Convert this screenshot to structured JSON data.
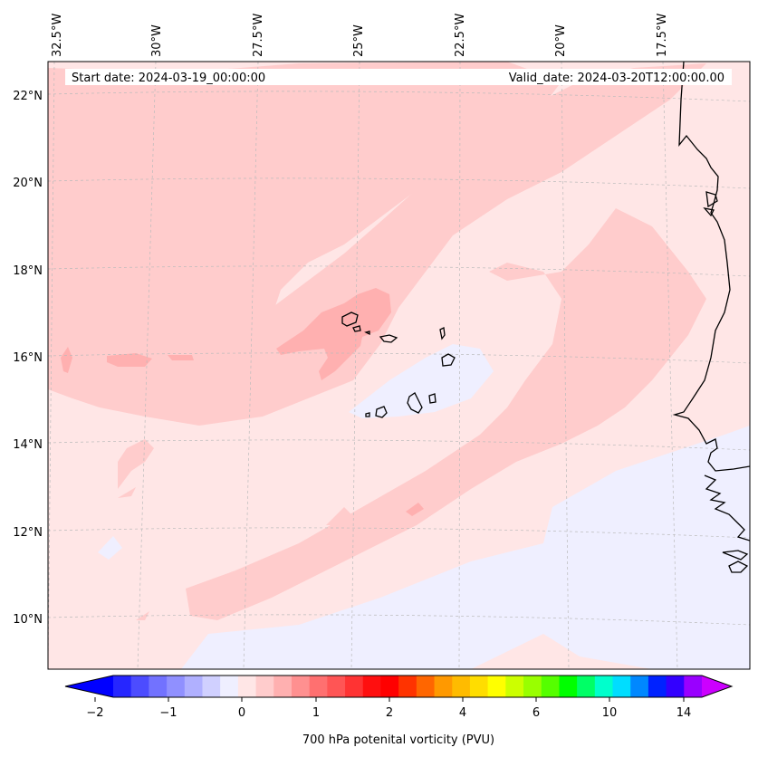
{
  "header": {
    "start_date": "Start date: 2024-03-19_00:00:00",
    "valid_date": "Valid_date: 2024-03-20T12:00:00.00"
  },
  "map": {
    "lon_labels": [
      "32.5°W",
      "30°W",
      "27.5°W",
      "25°W",
      "22.5°W",
      "20°W",
      "17.5°W"
    ],
    "lat_labels": [
      "22°N",
      "20°N",
      "18°N",
      "16°N",
      "14°N",
      "12°N",
      "10°N"
    ],
    "gridlines": "dashed",
    "coastlines": [
      "Cape Verde islands",
      "West African coast"
    ]
  },
  "colorbar": {
    "label": "700 hPa potenital vorticity (PVU)",
    "ticks": [
      "−2",
      "−1",
      "0",
      "1",
      "2",
      "4",
      "6",
      "10",
      "14"
    ],
    "colors": [
      "#0000ff",
      "#2626ff",
      "#4c4cff",
      "#7272ff",
      "#9090ff",
      "#b0b0ff",
      "#d0d0ff",
      "#efefff",
      "#ffe6e6",
      "#ffcccc",
      "#ffb0b0",
      "#ff9090",
      "#ff7070",
      "#ff5555",
      "#ff3333",
      "#ff0f0f",
      "#ff0000",
      "#ff3300",
      "#ff6600",
      "#ff9900",
      "#ffbb00",
      "#ffdd00",
      "#ffff00",
      "#ccff00",
      "#99ff00",
      "#55ff00",
      "#00ff00",
      "#00ff66",
      "#00ffcc",
      "#00ddff",
      "#0088ff",
      "#0022ff",
      "#3300ff",
      "#9900ff",
      "#cc00ff"
    ],
    "extend": "both"
  },
  "field_colors": {
    "background": "#ffe6e6",
    "band_light": "#ffcccc",
    "band_mid": "#ffb0b0",
    "negative": "#efefff"
  }
}
